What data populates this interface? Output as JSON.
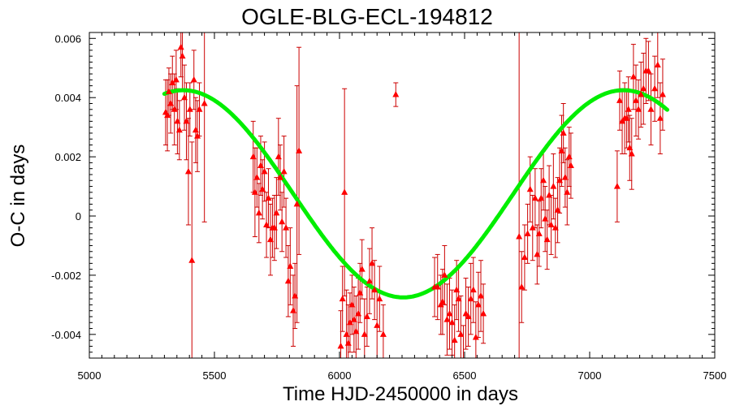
{
  "chart_data": {
    "type": "scatter",
    "title": "OGLE-BLG-ECL-194812",
    "xlabel": "Time HJD-2450000 in days",
    "ylabel": "O-C in days",
    "xlim": [
      5000,
      7500
    ],
    "ylim": [
      -0.0048,
      0.0062
    ],
    "x_ticks": [
      5000,
      5500,
      6000,
      6500,
      7000,
      7500
    ],
    "x_tick_labels": [
      "5000",
      "5500",
      "6000",
      "6500",
      "7000",
      "7500"
    ],
    "y_ticks": [
      -0.004,
      -0.002,
      0,
      0.002,
      0.004,
      0.006
    ],
    "y_tick_labels": [
      "-0.004",
      "-0.002",
      "0",
      "0.002",
      "0.004",
      "0.006"
    ],
    "grid": false,
    "colors": {
      "points": "#ff0000",
      "error_bars": "#cc0000",
      "fit": "#00ee00",
      "axes": "#000000"
    },
    "series": [
      {
        "kind": "points_with_error_bars",
        "points": [
          {
            "x": 5305,
            "y": 0.0035,
            "err": 0.0011
          },
          {
            "x": 5312,
            "y": 0.0034,
            "err": 0.0012
          },
          {
            "x": 5318,
            "y": 0.0042,
            "err": 0.0008
          },
          {
            "x": 5325,
            "y": 0.0038,
            "err": 0.001
          },
          {
            "x": 5332,
            "y": 0.0045,
            "err": 0.0009
          },
          {
            "x": 5340,
            "y": 0.0036,
            "err": 0.0012
          },
          {
            "x": 5347,
            "y": 0.0046,
            "err": 0.001
          },
          {
            "x": 5352,
            "y": 0.0032,
            "err": 0.0011
          },
          {
            "x": 5360,
            "y": 0.0029,
            "err": 0.001
          },
          {
            "x": 5366,
            "y": 0.0057,
            "err": 0.001
          },
          {
            "x": 5372,
            "y": 0.0054,
            "err": 0.0012
          },
          {
            "x": 5380,
            "y": 0.004,
            "err": 0.0011
          },
          {
            "x": 5388,
            "y": 0.0032,
            "err": 0.0013
          },
          {
            "x": 5396,
            "y": 0.0015,
            "err": 0.0018
          },
          {
            "x": 5402,
            "y": 0.0036,
            "err": 0.0009
          },
          {
            "x": 5410,
            "y": -0.0015,
            "err": 0.004
          },
          {
            "x": 5418,
            "y": 0.0046,
            "err": 0.001
          },
          {
            "x": 5425,
            "y": 0.0029,
            "err": 0.0011
          },
          {
            "x": 5432,
            "y": 0.0027,
            "err": 0.0012
          },
          {
            "x": 5440,
            "y": 0.0036,
            "err": 0.0009
          },
          {
            "x": 5460,
            "y": 0.0038,
            "err": 0.004
          },
          {
            "x": 5655,
            "y": 0.002,
            "err": 0.0012
          },
          {
            "x": 5662,
            "y": 0.0008,
            "err": 0.0015
          },
          {
            "x": 5670,
            "y": 0.0013,
            "err": 0.001
          },
          {
            "x": 5678,
            "y": 0.0001,
            "err": 0.001
          },
          {
            "x": 5685,
            "y": 0.0017,
            "err": 0.001
          },
          {
            "x": 5692,
            "y": 0.0009,
            "err": 0.001
          },
          {
            "x": 5700,
            "y": 0.0015,
            "err": 0.001
          },
          {
            "x": 5708,
            "y": -0.0003,
            "err": 0.0011
          },
          {
            "x": 5716,
            "y": 0.0006,
            "err": 0.001
          },
          {
            "x": 5724,
            "y": -0.0008,
            "err": 0.0012
          },
          {
            "x": 5732,
            "y": -0.0004,
            "err": 0.001
          },
          {
            "x": 5740,
            "y": -0.0004,
            "err": 0.0011
          },
          {
            "x": 5748,
            "y": 0.0001,
            "err": 0.0012
          },
          {
            "x": 5756,
            "y": 0.002,
            "err": 0.0013
          },
          {
            "x": 5763,
            "y": 0.0013,
            "err": 0.0011
          },
          {
            "x": 5770,
            "y": -0.0002,
            "err": 0.001
          },
          {
            "x": 5778,
            "y": 0.0015,
            "err": 0.0012
          },
          {
            "x": 5786,
            "y": -0.0004,
            "err": 0.001
          },
          {
            "x": 5795,
            "y": -0.0022,
            "err": 0.0012
          },
          {
            "x": 5803,
            "y": -0.0017,
            "err": 0.0013
          },
          {
            "x": 5815,
            "y": -0.0032,
            "err": 0.0012
          },
          {
            "x": 5822,
            "y": -0.0027,
            "err": 0.0011
          },
          {
            "x": 5830,
            "y": 0.0004,
            "err": 0.004
          },
          {
            "x": 5838,
            "y": 0.0022,
            "err": 0.0035
          },
          {
            "x": 6005,
            "y": -0.0044,
            "err": 0.0012
          },
          {
            "x": 6012,
            "y": -0.0028,
            "err": 0.0011
          },
          {
            "x": 6020,
            "y": 0.0008,
            "err": 0.0035
          },
          {
            "x": 6028,
            "y": -0.004,
            "err": 0.0015
          },
          {
            "x": 6035,
            "y": -0.0043,
            "err": 0.0013
          },
          {
            "x": 6042,
            "y": -0.0036,
            "err": 0.001
          },
          {
            "x": 6050,
            "y": -0.003,
            "err": 0.001
          },
          {
            "x": 6058,
            "y": -0.0035,
            "err": 0.0011
          },
          {
            "x": 6066,
            "y": -0.0039,
            "err": 0.0012
          },
          {
            "x": 6075,
            "y": -0.0033,
            "err": 0.0012
          },
          {
            "x": 6082,
            "y": -0.0026,
            "err": 0.001
          },
          {
            "x": 6090,
            "y": -0.0018,
            "err": 0.001
          },
          {
            "x": 6100,
            "y": -0.004,
            "err": 0.0012
          },
          {
            "x": 6110,
            "y": -0.0034,
            "err": 0.001
          },
          {
            "x": 6120,
            "y": -0.0022,
            "err": 0.0011
          },
          {
            "x": 6130,
            "y": -0.0016,
            "err": 0.0012
          },
          {
            "x": 6140,
            "y": -0.0025,
            "err": 0.001
          },
          {
            "x": 6150,
            "y": -0.0037,
            "err": 0.0012
          },
          {
            "x": 6160,
            "y": -0.0028,
            "err": 0.0011
          },
          {
            "x": 6175,
            "y": -0.004,
            "err": 0.001
          },
          {
            "x": 6225,
            "y": 0.0041,
            "err": 0.0004
          },
          {
            "x": 6380,
            "y": -0.0024,
            "err": 0.001
          },
          {
            "x": 6392,
            "y": -0.0024,
            "err": 0.0011
          },
          {
            "x": 6405,
            "y": -0.003,
            "err": 0.001
          },
          {
            "x": 6412,
            "y": -0.0029,
            "err": 0.0011
          },
          {
            "x": 6420,
            "y": -0.002,
            "err": 0.001
          },
          {
            "x": 6430,
            "y": -0.0035,
            "err": 0.0012
          },
          {
            "x": 6440,
            "y": -0.0033,
            "err": 0.0012
          },
          {
            "x": 6450,
            "y": -0.0036,
            "err": 0.0011
          },
          {
            "x": 6460,
            "y": -0.0042,
            "err": 0.0012
          },
          {
            "x": 6468,
            "y": -0.0025,
            "err": 0.001
          },
          {
            "x": 6476,
            "y": -0.0028,
            "err": 0.0011
          },
          {
            "x": 6485,
            "y": -0.004,
            "err": 0.0013
          },
          {
            "x": 6495,
            "y": -0.0049,
            "err": 0.0012
          },
          {
            "x": 6505,
            "y": -0.0033,
            "err": 0.0012
          },
          {
            "x": 6515,
            "y": -0.0034,
            "err": 0.001
          },
          {
            "x": 6525,
            "y": -0.0028,
            "err": 0.0012
          },
          {
            "x": 6535,
            "y": -0.0025,
            "err": 0.0011
          },
          {
            "x": 6545,
            "y": -0.0041,
            "err": 0.0012
          },
          {
            "x": 6555,
            "y": -0.003,
            "err": 0.0011
          },
          {
            "x": 6565,
            "y": -0.0027,
            "err": 0.0012
          },
          {
            "x": 6575,
            "y": -0.0033,
            "err": 0.001
          },
          {
            "x": 6718,
            "y": -0.0007,
            "err": 0.008
          },
          {
            "x": 6728,
            "y": -0.0024,
            "err": 0.0012
          },
          {
            "x": 6740,
            "y": -0.0014,
            "err": 0.0011
          },
          {
            "x": 6752,
            "y": -0.0006,
            "err": 0.001
          },
          {
            "x": 6762,
            "y": 0.0009,
            "err": 0.0011
          },
          {
            "x": 6772,
            "y": -0.0004,
            "err": 0.0011
          },
          {
            "x": 6782,
            "y": 0.0006,
            "err": 0.001
          },
          {
            "x": 6790,
            "y": -0.0013,
            "err": 0.001
          },
          {
            "x": 6798,
            "y": -0.0006,
            "err": 0.0011
          },
          {
            "x": 6806,
            "y": 0.0006,
            "err": 0.001
          },
          {
            "x": 6815,
            "y": 0.0012,
            "err": 0.001
          },
          {
            "x": 6822,
            "y": -0.0001,
            "err": 0.0011
          },
          {
            "x": 6830,
            "y": -0.0008,
            "err": 0.001
          },
          {
            "x": 6838,
            "y": 0.0007,
            "err": 0.001
          },
          {
            "x": 6846,
            "y": -0.0003,
            "err": 0.001
          },
          {
            "x": 6855,
            "y": 0.001,
            "err": 0.0011
          },
          {
            "x": 6863,
            "y": -0.0004,
            "err": 0.001
          },
          {
            "x": 6872,
            "y": 0.0002,
            "err": 0.0011
          },
          {
            "x": 6880,
            "y": 0.0012,
            "err": 0.0011
          },
          {
            "x": 6888,
            "y": 0.0022,
            "err": 0.0012
          },
          {
            "x": 6895,
            "y": 0.0028,
            "err": 0.001
          },
          {
            "x": 6902,
            "y": 0.0013,
            "err": 0.001
          },
          {
            "x": 6910,
            "y": 0.0008,
            "err": 0.0011
          },
          {
            "x": 6918,
            "y": 0.002,
            "err": 0.001
          },
          {
            "x": 6925,
            "y": 0.0017,
            "err": 0.0011
          },
          {
            "x": 7110,
            "y": 0.001,
            "err": 0.0012
          },
          {
            "x": 7120,
            "y": 0.0039,
            "err": 0.001
          },
          {
            "x": 7130,
            "y": 0.0032,
            "err": 0.0011
          },
          {
            "x": 7140,
            "y": 0.0033,
            "err": 0.0012
          },
          {
            "x": 7148,
            "y": 0.0033,
            "err": 0.001
          },
          {
            "x": 7155,
            "y": 0.0036,
            "err": 0.0011
          },
          {
            "x": 7160,
            "y": 0.0023,
            "err": 0.0011
          },
          {
            "x": 7168,
            "y": 0.0021,
            "err": 0.0012
          },
          {
            "x": 7175,
            "y": 0.0047,
            "err": 0.0011
          },
          {
            "x": 7185,
            "y": 0.0039,
            "err": 0.0012
          },
          {
            "x": 7195,
            "y": 0.0036,
            "err": 0.001
          },
          {
            "x": 7205,
            "y": 0.0041,
            "err": 0.0011
          },
          {
            "x": 7215,
            "y": 0.0043,
            "err": 0.0012
          },
          {
            "x": 7225,
            "y": 0.0049,
            "err": 0.0011
          },
          {
            "x": 7235,
            "y": 0.0049,
            "err": 0.001
          },
          {
            "x": 7245,
            "y": 0.0036,
            "err": 0.0012
          },
          {
            "x": 7260,
            "y": 0.0043,
            "err": 0.0011
          },
          {
            "x": 7272,
            "y": 0.0051,
            "err": 0.0011
          },
          {
            "x": 7282,
            "y": 0.0033,
            "err": 0.0012
          },
          {
            "x": 7292,
            "y": 0.0041,
            "err": 0.0012
          }
        ]
      },
      {
        "kind": "fit_curve",
        "x_range": [
          5300,
          7310
        ],
        "offset": 0.00075,
        "amplitude": 0.0035,
        "period": 1760,
        "peak_x": 5375
      }
    ]
  }
}
